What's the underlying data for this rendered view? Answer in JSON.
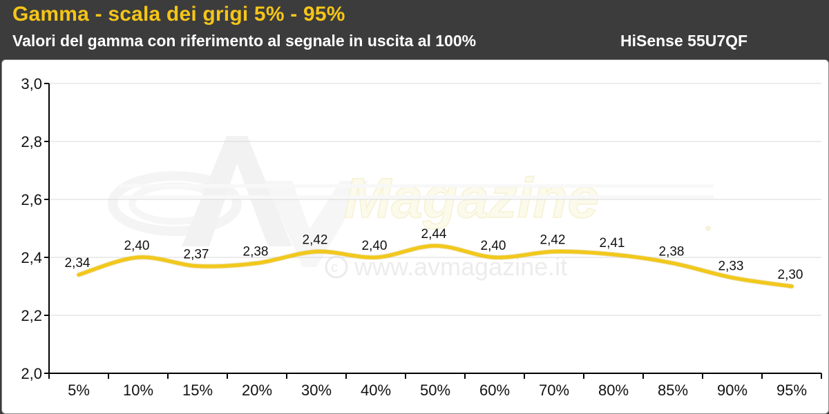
{
  "header": {
    "title": "Gamma - scala dei grigi 5% - 95%",
    "subtitle": "Valori del gamma con riferimento al segnale in uscita al 100%",
    "model": "HiSense 55U7QF"
  },
  "watermark": {
    "brand": "Magazine",
    "url": "www.avmagazine.it",
    "copyright_icon": "copyright-icon"
  },
  "colors": {
    "accent": "#f5c518",
    "line": "#f2c81a",
    "header_bg": "#3c3c3c",
    "grid": "#d9d9d9"
  },
  "chart_data": {
    "type": "line",
    "categories": [
      "5%",
      "10%",
      "15%",
      "20%",
      "30%",
      "40%",
      "50%",
      "60%",
      "70%",
      "80%",
      "85%",
      "90%",
      "95%"
    ],
    "values": [
      2.34,
      2.4,
      2.37,
      2.38,
      2.42,
      2.4,
      2.44,
      2.4,
      2.42,
      2.41,
      2.38,
      2.33,
      2.3
    ],
    "data_labels": [
      "2,34",
      "2,40",
      "2,37",
      "2,38",
      "2,42",
      "2,40",
      "2,44",
      "2,40",
      "2,42",
      "2,41",
      "2,38",
      "2,33",
      "2,30"
    ],
    "ylim": [
      2.0,
      3.0
    ],
    "yticks": [
      3.0,
      2.8,
      2.6,
      2.4,
      2.2,
      2.0
    ],
    "ytick_labels": [
      "3,0",
      "2,8",
      "2,6",
      "2,4",
      "2,2",
      "2,0"
    ],
    "grid": "horizontal",
    "smooth": true
  }
}
